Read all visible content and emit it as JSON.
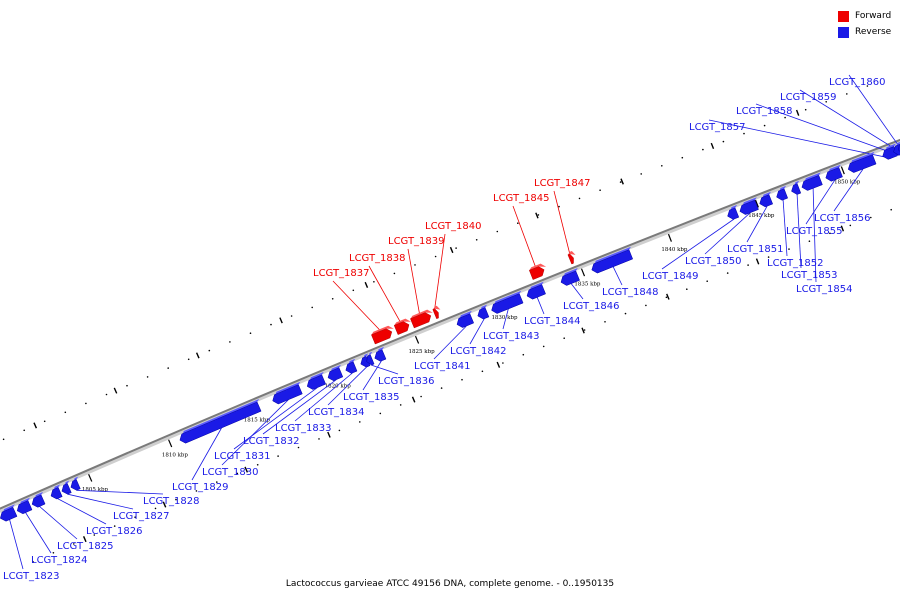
{
  "legend": {
    "forward_label": "Forward",
    "reverse_label": "Reverse",
    "forward_color": "#ee0000",
    "reverse_color": "#1a1ae6"
  },
  "caption": "Lactococcus garvieae ATCC 49156 DNA, complete genome. - 0..1950135",
  "axis": {
    "kbp_labels": [
      "1805 kbp",
      "1810 kbp",
      "1815 kbp",
      "1820 kbp",
      "1825 kbp",
      "1830 kbp",
      "1835 kbp",
      "1840 kbp",
      "1845 kbp",
      "1850 kbp"
    ]
  },
  "genes": [
    {
      "name": "LCGT_1823",
      "strand": "reverse"
    },
    {
      "name": "LCGT_1824",
      "strand": "reverse"
    },
    {
      "name": "LCGT_1825",
      "strand": "reverse"
    },
    {
      "name": "LCGT_1826",
      "strand": "reverse"
    },
    {
      "name": "LCGT_1827",
      "strand": "reverse"
    },
    {
      "name": "LCGT_1828",
      "strand": "reverse"
    },
    {
      "name": "LCGT_1829",
      "strand": "reverse"
    },
    {
      "name": "LCGT_1830",
      "strand": "reverse"
    },
    {
      "name": "LCGT_1831",
      "strand": "reverse"
    },
    {
      "name": "LCGT_1832",
      "strand": "reverse"
    },
    {
      "name": "LCGT_1833",
      "strand": "reverse"
    },
    {
      "name": "LCGT_1834",
      "strand": "reverse"
    },
    {
      "name": "LCGT_1835",
      "strand": "reverse"
    },
    {
      "name": "LCGT_1836",
      "strand": "reverse"
    },
    {
      "name": "LCGT_1837",
      "strand": "forward"
    },
    {
      "name": "LCGT_1838",
      "strand": "forward"
    },
    {
      "name": "LCGT_1839",
      "strand": "forward"
    },
    {
      "name": "LCGT_1840",
      "strand": "forward"
    },
    {
      "name": "LCGT_1841",
      "strand": "reverse"
    },
    {
      "name": "LCGT_1842",
      "strand": "reverse"
    },
    {
      "name": "LCGT_1843",
      "strand": "reverse"
    },
    {
      "name": "LCGT_1844",
      "strand": "reverse"
    },
    {
      "name": "LCGT_1845",
      "strand": "forward"
    },
    {
      "name": "LCGT_1846",
      "strand": "reverse"
    },
    {
      "name": "LCGT_1847",
      "strand": "forward"
    },
    {
      "name": "LCGT_1848",
      "strand": "reverse"
    },
    {
      "name": "LCGT_1849",
      "strand": "reverse"
    },
    {
      "name": "LCGT_1850",
      "strand": "reverse"
    },
    {
      "name": "LCGT_1851",
      "strand": "reverse"
    },
    {
      "name": "LCGT_1852",
      "strand": "reverse"
    },
    {
      "name": "LCGT_1853",
      "strand": "reverse"
    },
    {
      "name": "LCGT_1854",
      "strand": "reverse"
    },
    {
      "name": "LCGT_1855",
      "strand": "reverse"
    },
    {
      "name": "LCGT_1856",
      "strand": "reverse"
    },
    {
      "name": "LCGT_1857",
      "strand": "reverse"
    },
    {
      "name": "LCGT_1858",
      "strand": "reverse"
    },
    {
      "name": "LCGT_1859",
      "strand": "reverse"
    },
    {
      "name": "LCGT_1860",
      "strand": "reverse"
    }
  ]
}
